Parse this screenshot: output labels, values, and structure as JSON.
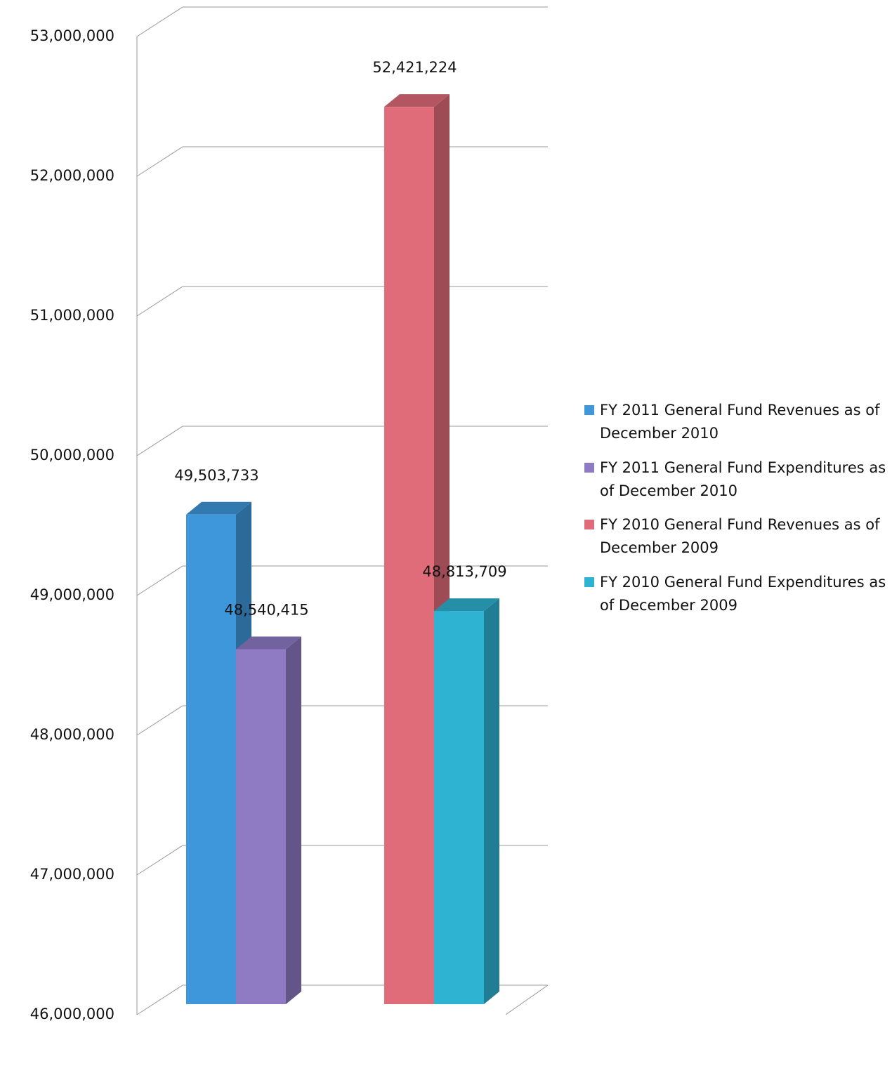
{
  "chart_data": {
    "type": "bar3d",
    "categories": [
      null,
      null
    ],
    "series": [
      {
        "name": "FY 2011 General Fund Revenues as of December 2010",
        "color": "#3d97da",
        "values": [
          49503733,
          null
        ],
        "value_labels": [
          "49,503,733",
          null
        ]
      },
      {
        "name": "FY 2011 General Fund Expenditures as of December 2010",
        "color": "#8f7ac4",
        "values": [
          48540415,
          null
        ],
        "value_labels": [
          "48,540,415",
          null
        ]
      },
      {
        "name": "FY 2010 General Fund Revenues as of December 2009",
        "color": "#e06c7a",
        "values": [
          null,
          52421224
        ],
        "value_labels": [
          null,
          "52,421,224"
        ]
      },
      {
        "name": "FY 2010 General Fund Expenditures as of December 2009",
        "color": "#2fb3d2",
        "values": [
          null,
          48813709
        ],
        "value_labels": [
          null,
          "48,813,709"
        ]
      }
    ],
    "ylim": [
      46000000,
      53000000
    ],
    "yticks": [
      {
        "value": 46000000,
        "label": "46,000,000"
      },
      {
        "value": 47000000,
        "label": "47,000,000"
      },
      {
        "value": 48000000,
        "label": "48,000,000"
      },
      {
        "value": 49000000,
        "label": "49,000,000"
      },
      {
        "value": 50000000,
        "label": "50,000,000"
      },
      {
        "value": 51000000,
        "label": "51,000,000"
      },
      {
        "value": 52000000,
        "label": "52,000,000"
      },
      {
        "value": 53000000,
        "label": "53,000,000"
      }
    ],
    "grid": true,
    "legend": "right"
  }
}
